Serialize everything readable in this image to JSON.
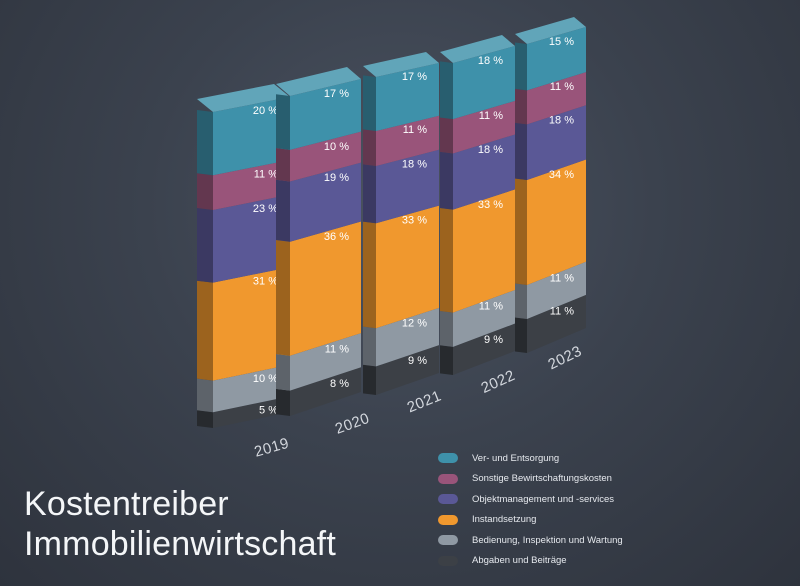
{
  "title_line1": "Kostentreiber",
  "title_line2": "Immobilienwirtschaft",
  "chart_data": {
    "type": "bar",
    "stacked": true,
    "categories": [
      "2019",
      "2020",
      "2021",
      "2022",
      "2023"
    ],
    "series": [
      {
        "name": "Abgaben und Beiträge",
        "color": "#3c4046",
        "values": [
          5,
          8,
          9,
          9,
          11
        ]
      },
      {
        "name": "Bedienung, Inspektion und Wartung",
        "color": "#8f99a3",
        "values": [
          10,
          11,
          12,
          11,
          11
        ]
      },
      {
        "name": "Instandsetzung",
        "color": "#f0982e",
        "values": [
          31,
          36,
          33,
          33,
          34
        ]
      },
      {
        "name": "Objektmanagement und -services",
        "color": "#5a5896",
        "values": [
          23,
          19,
          18,
          18,
          18
        ]
      },
      {
        "name": "Sonstige Bewirtschaftungskosten",
        "color": "#99547a",
        "values": [
          11,
          10,
          11,
          11,
          11
        ]
      },
      {
        "name": "Ver- und Entsorgung",
        "color": "#3e91aa",
        "values": [
          20,
          17,
          17,
          18,
          15
        ]
      }
    ],
    "label_suffix": " %",
    "legend_placement": "bottom-right"
  }
}
